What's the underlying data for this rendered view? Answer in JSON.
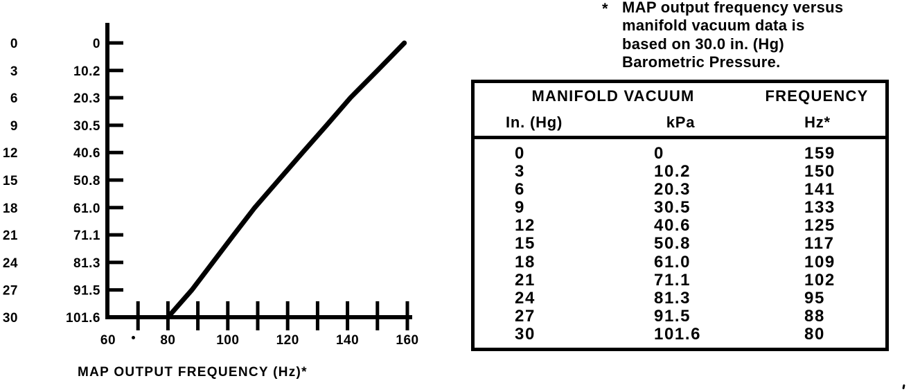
{
  "note": {
    "marker": "*",
    "lines": [
      "MAP output frequency versus",
      "manifold vacuum data is",
      "based on 30.0 in. (Hg)",
      "Barometric Pressure."
    ]
  },
  "chart_data": [
    {
      "type": "line",
      "title": "",
      "xlabel": "MAP OUTPUT FREQUENCY (Hz)*",
      "ylabel": "",
      "xlim": [
        60,
        160
      ],
      "x_tick_labels": [
        "60",
        "80",
        "100",
        "120",
        "140",
        "160"
      ],
      "x_tick_label_values": [
        60,
        80,
        100,
        120,
        140,
        160
      ],
      "x_minor_tick_values": [
        70,
        80,
        90,
        100,
        110,
        120,
        130,
        140,
        150,
        160
      ],
      "y_axis": {
        "direction": "increases_downward",
        "lim_kpa": [
          0,
          101.6
        ],
        "tick_labels_inhg": [
          "0",
          "3",
          "6",
          "9",
          "12",
          "15",
          "18",
          "21",
          "24",
          "27",
          "30"
        ],
        "tick_labels_kpa": [
          "0",
          "10.2",
          "20.3",
          "30.5",
          "40.6",
          "50.8",
          "61.0",
          "71.1",
          "81.3",
          "91.5",
          "101.6"
        ]
      },
      "grid": false,
      "legend": false,
      "series": [
        {
          "name": "MAP output frequency vs manifold vacuum",
          "x_hz": [
            159,
            150,
            141,
            133,
            125,
            117,
            109,
            102,
            95,
            88,
            80
          ],
          "y_kpa": [
            0,
            10.2,
            20.3,
            30.5,
            40.6,
            50.8,
            61.0,
            71.1,
            81.3,
            91.5,
            101.6
          ],
          "y_inhg": [
            0,
            3,
            6,
            9,
            12,
            15,
            18,
            21,
            24,
            27,
            30
          ]
        }
      ]
    },
    {
      "type": "table",
      "header_groups": [
        {
          "label": "MANIFOLD VACUUM",
          "colspan": 2
        },
        {
          "label": "FREQUENCY",
          "colspan": 1
        }
      ],
      "columns": [
        "In. (Hg)",
        "kPa",
        "Hz*"
      ],
      "rows": [
        [
          "0",
          "0",
          "159"
        ],
        [
          "3",
          "10.2",
          "150"
        ],
        [
          "6",
          "20.3",
          "141"
        ],
        [
          "9",
          "30.5",
          "133"
        ],
        [
          "12",
          "40.6",
          "125"
        ],
        [
          "15",
          "50.8",
          "117"
        ],
        [
          "18",
          "61.0",
          "109"
        ],
        [
          "21",
          "71.1",
          "102"
        ],
        [
          "24",
          "81.3",
          "95"
        ],
        [
          "27",
          "91.5",
          "88"
        ],
        [
          "30",
          "101.6",
          "80"
        ]
      ]
    }
  ]
}
